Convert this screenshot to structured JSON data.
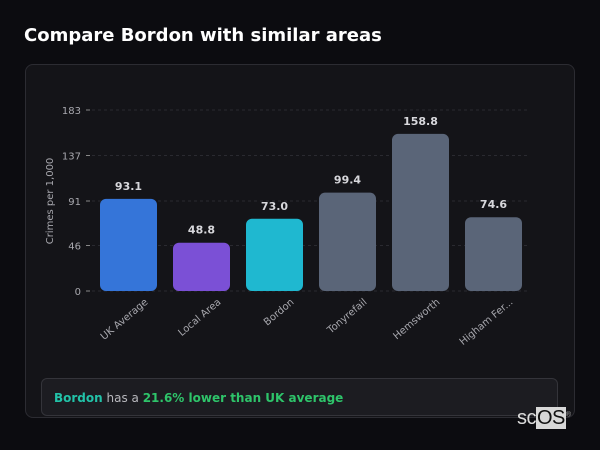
{
  "title": "Compare Bordon with similar areas",
  "chart_data": {
    "type": "bar",
    "title": "",
    "xlabel": "",
    "ylabel": "Crimes per 1,000",
    "ylim": [
      0,
      183
    ],
    "yticks": [
      0,
      46,
      91,
      137,
      183
    ],
    "grid": true,
    "categories": [
      "UK Average",
      "Local Area",
      "Bordon",
      "Tonyrefail",
      "Hemsworth",
      "Higham Fer..."
    ],
    "values": [
      93.1,
      48.8,
      73.0,
      99.4,
      158.8,
      74.6
    ],
    "value_labels": [
      "93.1",
      "48.8",
      "73.0",
      "99.4",
      "158.8",
      "74.6"
    ],
    "colors": [
      "#3575d9",
      "#7b50d6",
      "#1fb8d0",
      "#5a6578",
      "#5a6578",
      "#5a6578"
    ]
  },
  "summary": {
    "area": "Bordon",
    "middle": " has a ",
    "comparison": "21.6% lower than UK average"
  },
  "logo": {
    "text_a": "sc",
    "text_b": "OS",
    "mark": "®"
  }
}
